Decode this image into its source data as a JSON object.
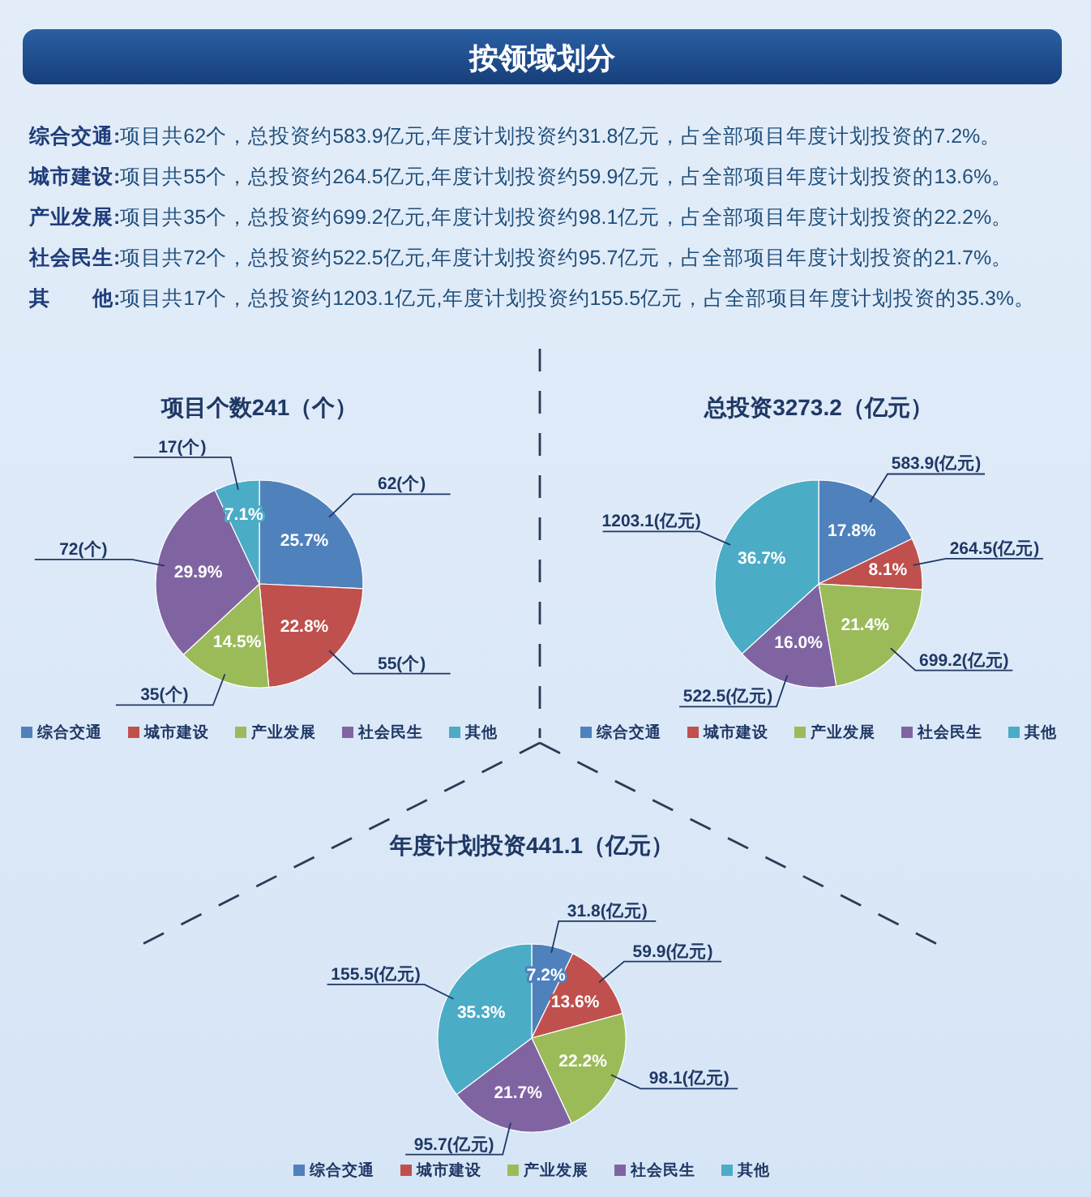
{
  "chart_data": [
    {
      "type": "other",
      "title": "按领域划分",
      "annotations": [
        "综合交通:项目共62个，总投资约583.9亿元,年度计划投资约31.8亿元，占全部项目年度计划投资的7.2%。",
        "城市建设:项目共55个，总投资约264.5亿元,年度计划投资约59.9亿元，占全部项目年度计划投资的13.6%。",
        "产业发展:项目共35个，总投资约699.2亿元,年度计划投资约98.1亿元，占全部项目年度计划投资的22.2%。",
        "社会民生:项目共72个，总投资约522.5亿元,年度计划投资约95.7亿元，占全部项目年度计划投资的21.7%。",
        "其　　他:项目共17个，总投资约1203.1亿元,年度计划投资约155.5亿元，占全部项目年度计划投资的35.3%。"
      ]
    },
    {
      "type": "pie",
      "title": "项目个数241（个）",
      "categories": [
        "综合交通",
        "城市建设",
        "产业发展",
        "社会民生",
        "其他"
      ],
      "values": [
        62,
        55,
        35,
        72,
        17
      ],
      "colors": [
        "#4f81bd",
        "#c0504d",
        "#9bbb59",
        "#8064a2",
        "#4bacc6"
      ],
      "value_labels": [
        "62(个)",
        "55(个)",
        "35(个)",
        "72(个)",
        "17(个)"
      ],
      "annotations": [
        "25.7%",
        "22.8%",
        "14.5%",
        "29.9%",
        "7.1%"
      ],
      "legend": "bottom"
    },
    {
      "type": "pie",
      "title": "总投资3273.2（亿元）",
      "categories": [
        "综合交通",
        "城市建设",
        "产业发展",
        "社会民生",
        "其他"
      ],
      "values": [
        583.9,
        264.5,
        699.2,
        522.5,
        1203.1
      ],
      "colors": [
        "#4f81bd",
        "#c0504d",
        "#9bbb59",
        "#8064a2",
        "#4bacc6"
      ],
      "value_labels": [
        "583.9(亿元)",
        "264.5(亿元)",
        "699.2(亿元)",
        "522.5(亿元)",
        "1203.1(亿元)"
      ],
      "annotations": [
        "17.8%",
        "8.1%",
        "21.4%",
        "16.0%",
        "36.7%"
      ],
      "legend": "bottom"
    },
    {
      "type": "pie",
      "title": "年度计划投资441.1（亿元）",
      "categories": [
        "综合交通",
        "城市建设",
        "产业发展",
        "社会民生",
        "其他"
      ],
      "values": [
        31.8,
        59.9,
        98.1,
        95.7,
        155.5
      ],
      "colors": [
        "#4f81bd",
        "#c0504d",
        "#9bbb59",
        "#8064a2",
        "#4bacc6"
      ],
      "value_labels": [
        "31.8(亿元)",
        "59.9(亿元)",
        "98.1(亿元)",
        "95.7(亿元)",
        "155.5(亿元)"
      ],
      "annotations": [
        "7.2%",
        "13.6%",
        "22.2%",
        "21.7%",
        "35.3%"
      ],
      "legend": "bottom"
    }
  ]
}
